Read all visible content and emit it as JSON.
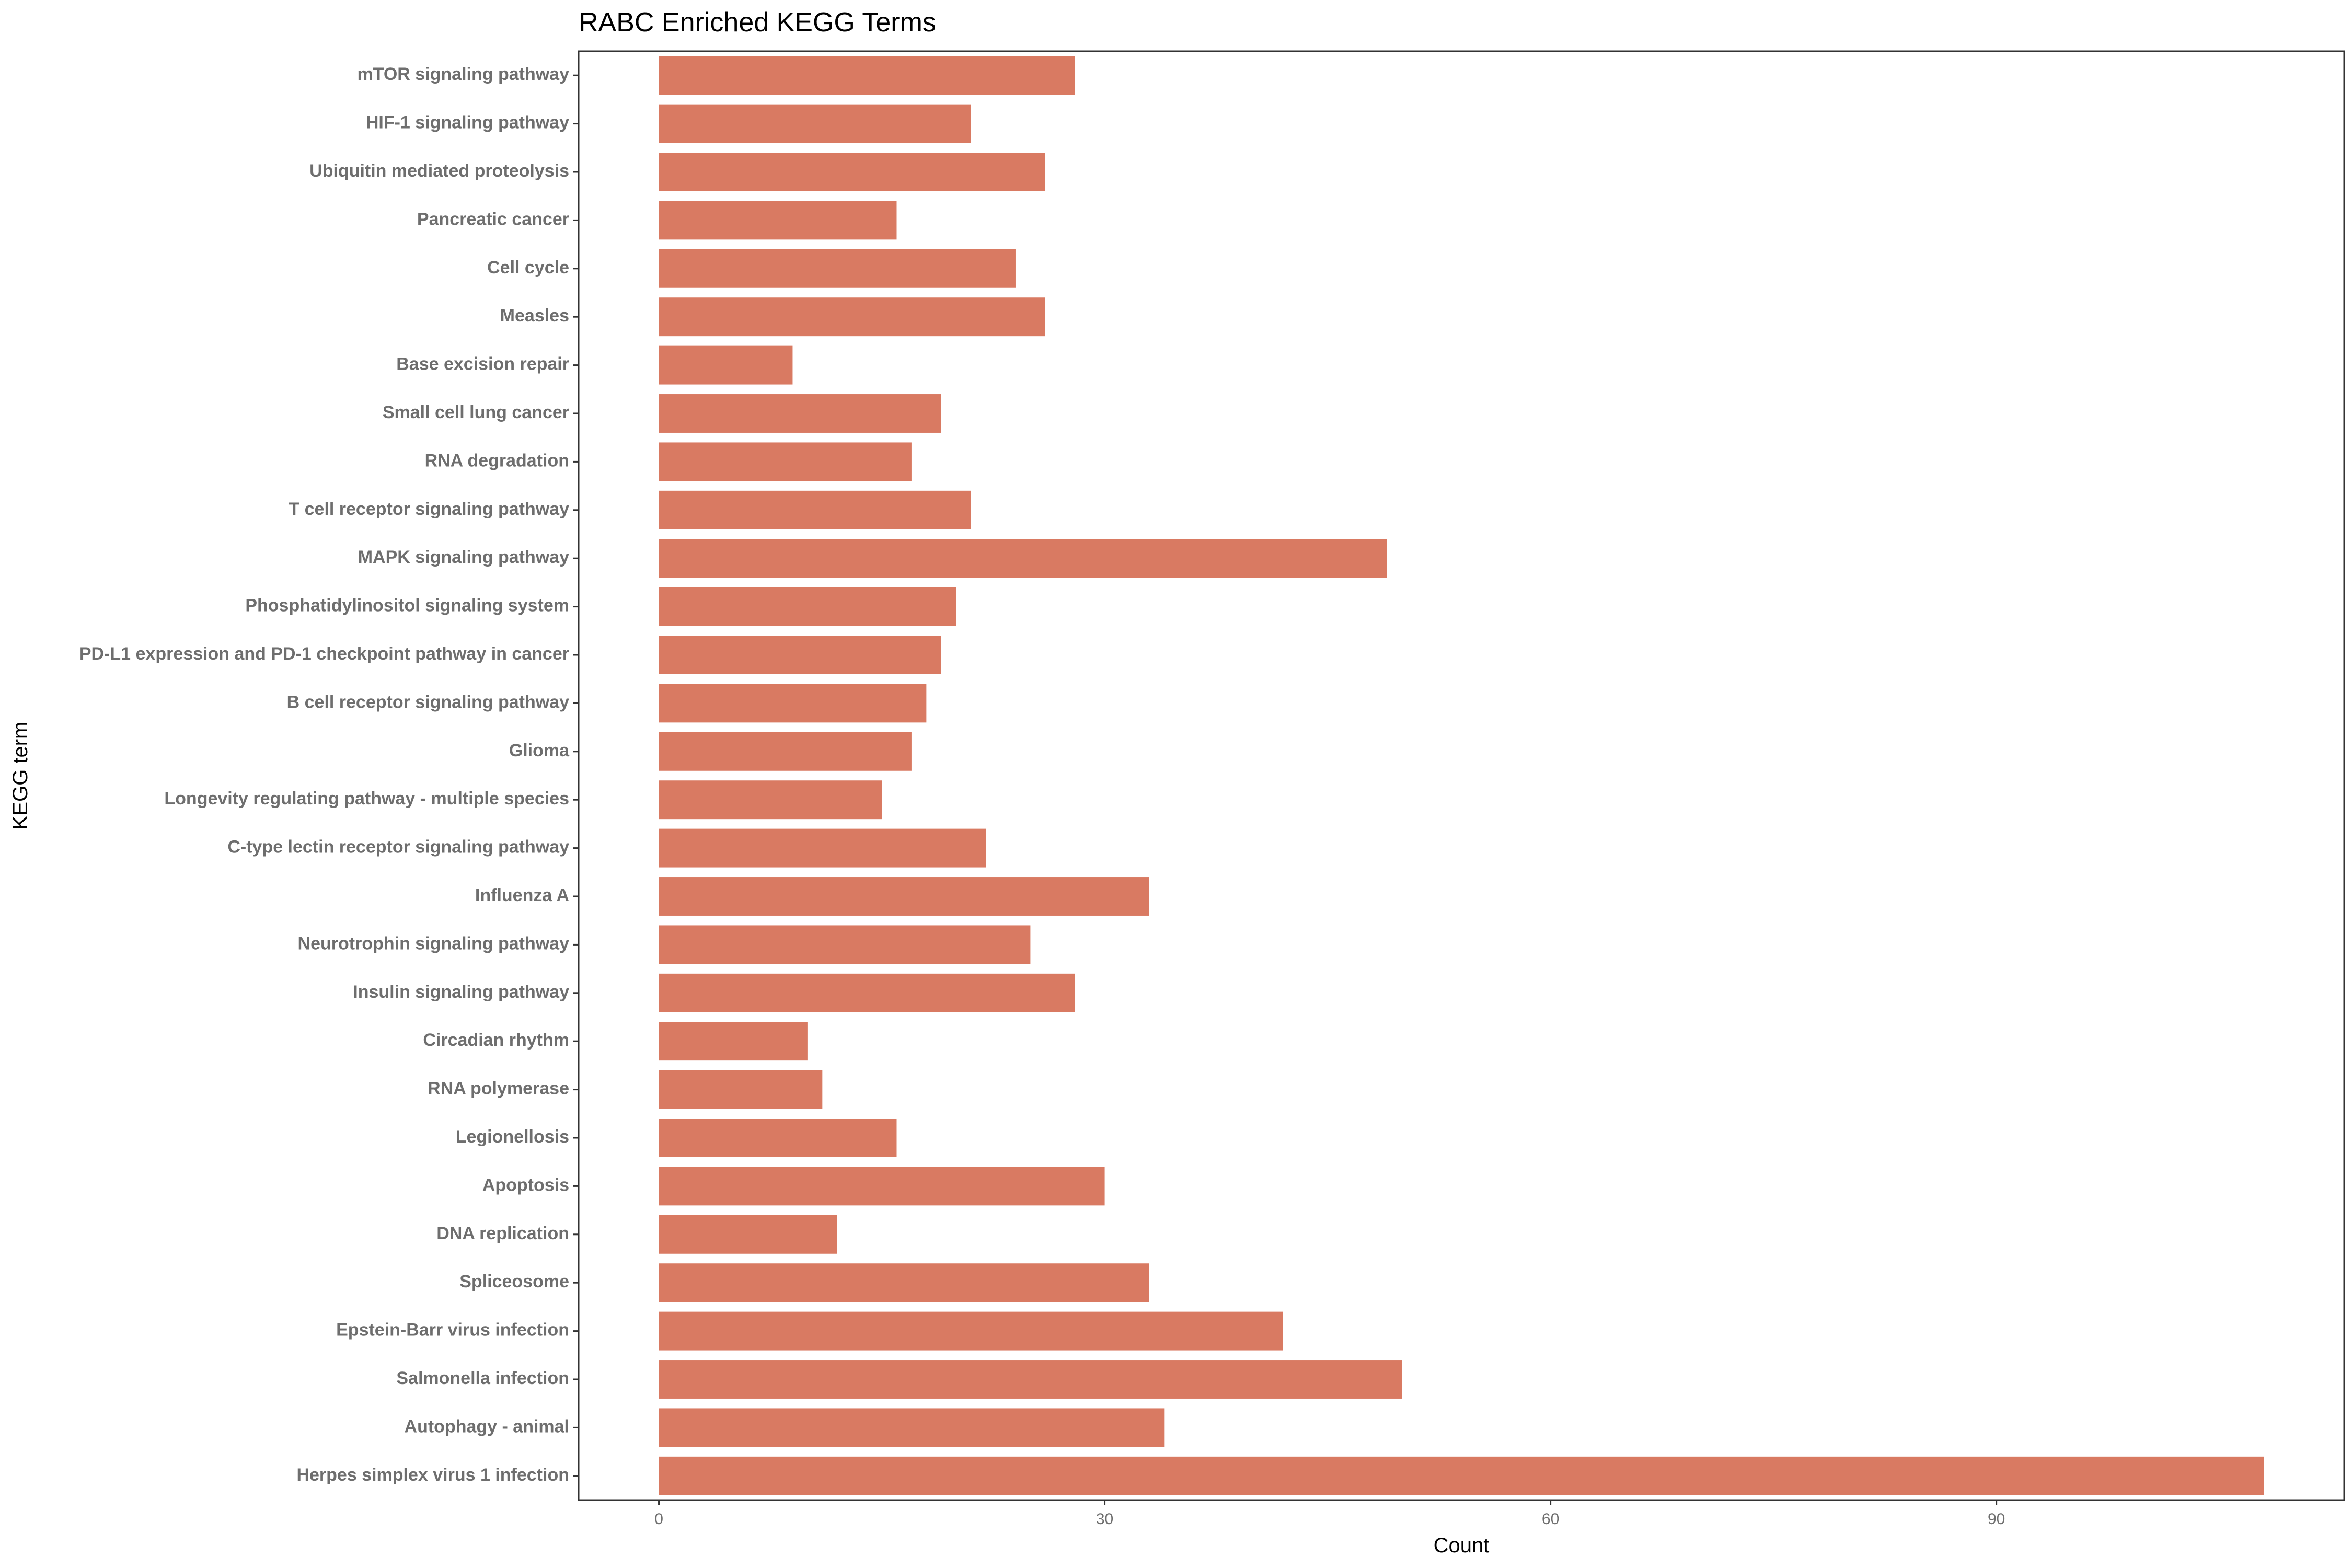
{
  "chart_data": {
    "type": "bar",
    "orientation": "horizontal",
    "title": "RABC Enriched KEGG Terms",
    "xlabel": "Count",
    "ylabel": "KEGG term",
    "xlim": [
      -5.4,
      113.4
    ],
    "xticks": [
      0,
      30,
      60,
      90
    ],
    "bar_color": "#d97a62",
    "grid": false,
    "categories": [
      "mTOR signaling pathway",
      "HIF-1 signaling pathway",
      "Ubiquitin mediated proteolysis",
      "Pancreatic cancer",
      "Cell cycle",
      "Measles",
      "Base excision repair",
      "Small cell lung cancer",
      "RNA degradation",
      "T cell receptor signaling pathway",
      "MAPK signaling pathway",
      "Phosphatidylinositol signaling system",
      "PD-L1 expression and PD-1 checkpoint pathway in cancer",
      "B cell receptor signaling pathway",
      "Glioma",
      "Longevity regulating pathway - multiple species",
      "C-type lectin receptor signaling pathway",
      "Influenza A",
      "Neurotrophin signaling pathway",
      "Insulin signaling pathway",
      "Circadian rhythm",
      "RNA polymerase",
      "Legionellosis",
      "Apoptosis",
      "DNA replication",
      "Spliceosome",
      "Epstein-Barr virus infection",
      "Salmonella infection",
      "Autophagy - animal",
      "Herpes simplex virus 1 infection"
    ],
    "values": [
      28,
      21,
      26,
      16,
      24,
      26,
      9,
      19,
      17,
      21,
      49,
      20,
      19,
      18,
      17,
      15,
      22,
      33,
      25,
      28,
      10,
      11,
      16,
      30,
      12,
      33,
      42,
      50,
      34,
      108
    ]
  }
}
